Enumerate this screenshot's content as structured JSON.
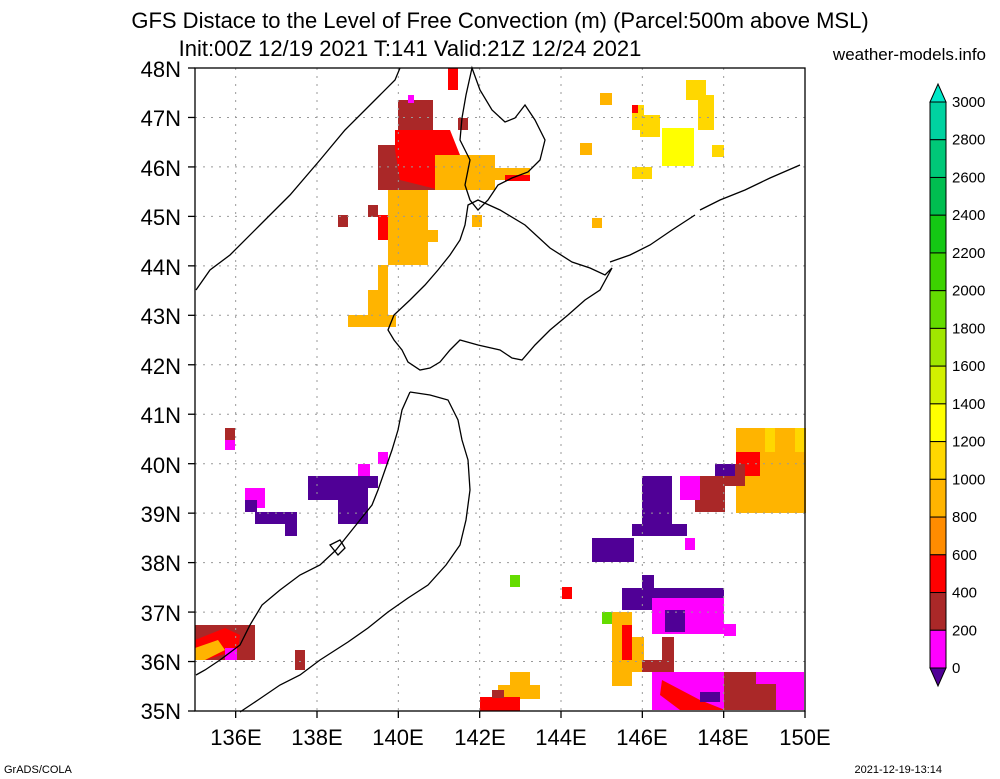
{
  "header": {
    "title_line1": "GFS Distace to the Level of Free Convection (m) (Parcel:500m above MSL)",
    "title_line2": "Init:00Z 12/19 2021 T:141 Valid:21Z 12/24 2021",
    "site": "weather-models.info"
  },
  "footer": {
    "left": "GrADS/COLA",
    "right": "2021-12-19-13:14"
  },
  "map": {
    "lat_labels": [
      "48N",
      "47N",
      "46N",
      "45N",
      "44N",
      "43N",
      "42N",
      "41N",
      "40N",
      "39N",
      "38N",
      "37N",
      "36N",
      "35N"
    ],
    "lon_labels": [
      "136E",
      "138E",
      "140E",
      "142E",
      "144E",
      "146E",
      "148E",
      "150E"
    ],
    "coastline_color": "#000000",
    "grid_color": "#999999"
  },
  "colorbar": {
    "labels": [
      "3000",
      "2800",
      "2600",
      "2400",
      "2200",
      "2000",
      "1800",
      "1600",
      "1400",
      "1200",
      "1000",
      "800",
      "600",
      "400",
      "200",
      "0"
    ],
    "colors": [
      "#00e8c8",
      "#00d2a0",
      "#00c878",
      "#00be50",
      "#14c814",
      "#3cd200",
      "#64dc00",
      "#a0e600",
      "#d2f000",
      "#ffff00",
      "#ffd700",
      "#ffb400",
      "#ff8c00",
      "#ff0000",
      "#aa2828",
      "#ff00ff",
      "#500096"
    ]
  }
}
